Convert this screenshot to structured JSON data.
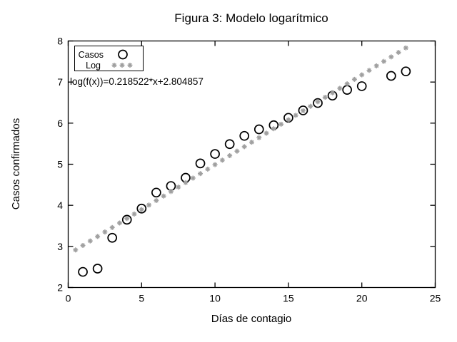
{
  "title": "Figura 3: Modelo logarítmico",
  "colors": {
    "background": "#ffffff",
    "axis": "#000000",
    "casos_series": "#000000",
    "log_series": "#a0a0a0"
  },
  "chart_data": {
    "type": "scatter",
    "title": "Figura 3: Modelo logarítmico",
    "xlabel": "Días de contagio",
    "ylabel": "Casos confirmados",
    "xlim": [
      0,
      25
    ],
    "ylim": [
      2,
      8
    ],
    "xticks": [
      "0",
      "5",
      "10",
      "15",
      "20",
      "25"
    ],
    "yticks": [
      "2",
      "3",
      "4",
      "5",
      "6",
      "7",
      "8"
    ],
    "grid": false,
    "legend": {
      "position": "top-left",
      "entries": [
        {
          "label": "Casos",
          "marker": "open-circle",
          "color": "#000000"
        },
        {
          "label": "Log",
          "marker": "asterisk-dot",
          "color": "#a0a0a0"
        }
      ]
    },
    "annotation": "log(f(x))=0.218522*x+2.804857",
    "series": [
      {
        "name": "Casos",
        "marker": "open-circle",
        "color": "#000000",
        "x": [
          1,
          2,
          3,
          4,
          5,
          6,
          7,
          8,
          9,
          10,
          11,
          12,
          13,
          14,
          15,
          16,
          17,
          18,
          19,
          20,
          22,
          23
        ],
        "y": [
          2.38,
          2.46,
          3.21,
          3.65,
          3.92,
          4.31,
          4.47,
          4.67,
          5.02,
          5.25,
          5.49,
          5.69,
          5.85,
          5.95,
          6.13,
          6.31,
          6.49,
          6.67,
          6.81,
          6.9,
          7.15,
          7.26
        ]
      },
      {
        "name": "Log",
        "marker": "asterisk-dot",
        "color": "#a0a0a0",
        "model": {
          "slope": 0.218522,
          "intercept": 2.804857
        },
        "x_start": 0.5,
        "x_end": 23,
        "x_step": 0.5
      }
    ]
  }
}
